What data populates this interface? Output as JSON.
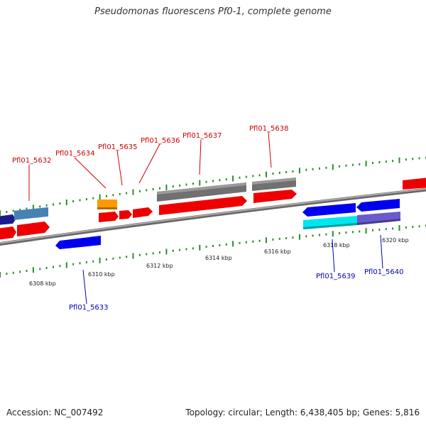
{
  "title": "Pseudomonas fluorescens Pf0-1, complete genome",
  "footer": {
    "accession": "Accession: NC_007492",
    "summary": "Topology: circular; Length: 6,438,405 bp; Genes: 5,816"
  },
  "colors": {
    "backbone": "#888888",
    "tick": "#2e8b2e",
    "forward_gene": "#ee0000",
    "reverse_gene": "#0000ee",
    "grey_feature": "#707070",
    "cyan_feature": "#00e5ee",
    "purple_feature": "#6a5acd",
    "orange_feature": "#ff9900",
    "steelblue_feature": "#4682b4",
    "top_label": "#cc0000",
    "bottom_label": "#0000bb"
  },
  "scale_labels": [
    "6308 kbp",
    "6310 kbp",
    "6312 kbp",
    "6314 kbp",
    "6316 kbp",
    "6318 kbp",
    "6320 kbp"
  ],
  "top_genes": [
    "Pfl01_5632",
    "Pfl01_5634",
    "Pfl01_5635",
    "Pfl01_5636",
    "Pfl01_5637",
    "Pfl01_5638"
  ],
  "bottom_genes": [
    "Pfl01_5633",
    "Pfl01_5639",
    "Pfl01_5640"
  ]
}
